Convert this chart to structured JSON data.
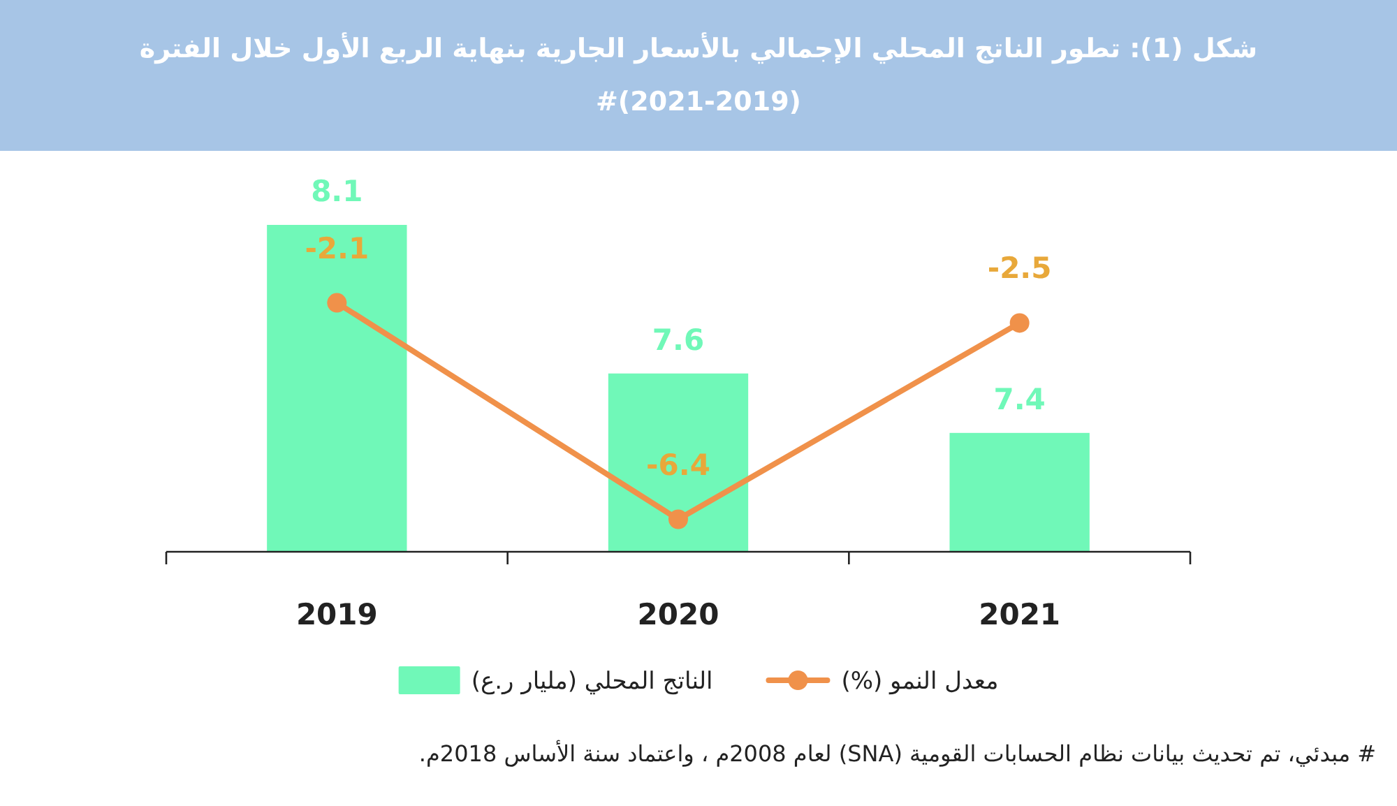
{
  "chart_data": {
    "type": "bar",
    "title": "شكل (1): تطور الناتج المحلي الإجمالي بالأسعار الجارية  بنهاية الربع الأول خلال الفترة (2019-2021)#",
    "categories": [
      "2019",
      "2020",
      "2021"
    ],
    "series": [
      {
        "name": "الناتج المحلي (مليار ر.ع)",
        "color": "#70f8b8",
        "values": [
          8.1,
          7.6,
          7.4
        ]
      },
      {
        "name": "معدل النمو (%)",
        "type": "line",
        "axis": "y2",
        "color": "#f0914a",
        "values": [
          -2.1,
          -6.4,
          -2.5
        ]
      }
    ],
    "ylim": [
      7.0,
      8.1
    ],
    "data_labels": true,
    "marker": "circle",
    "legend": "bottom",
    "annotations": [
      "# مبدئي، تم تحديث بيانات نظام الحسابات القومية (SNA) لعام 2008م ، واعتماد سنة الأساس 2018م."
    ]
  }
}
